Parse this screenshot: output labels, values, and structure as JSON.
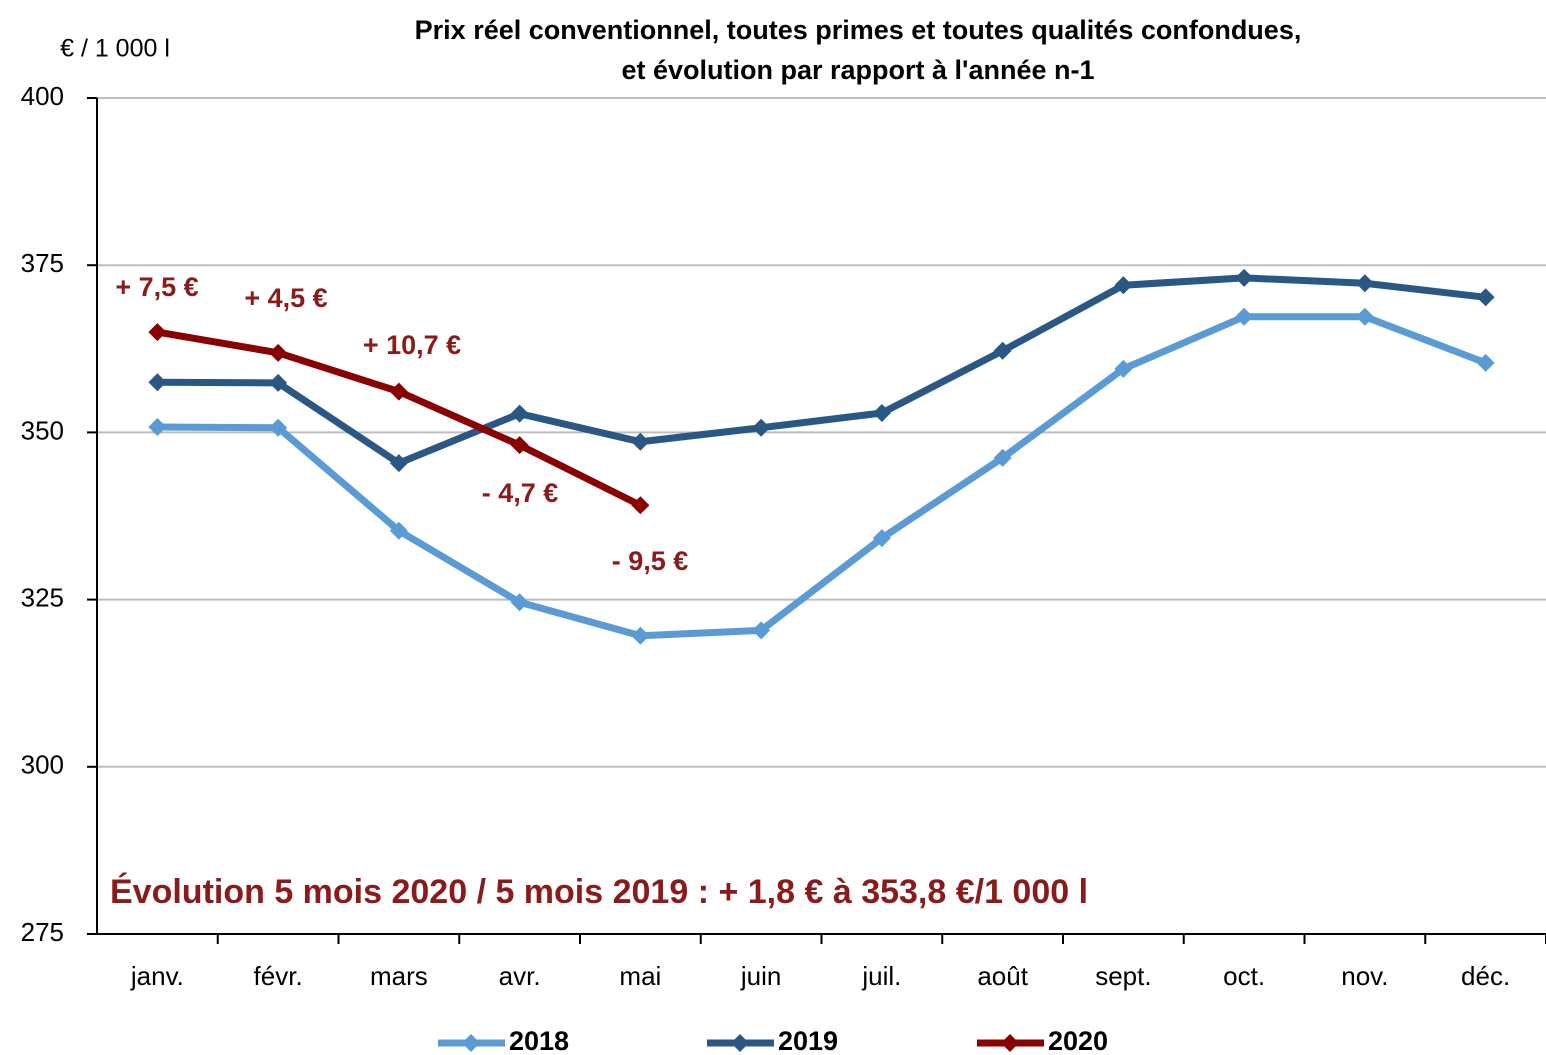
{
  "chart_data": {
    "type": "line",
    "title": [
      "Prix réel conventionnel, toutes primes et toutes qualités confondues,",
      "et évolution par rapport à l'année n-1"
    ],
    "y_axis_label": "€ / 1 000 l",
    "categories": [
      "janv.",
      "févr.",
      "mars",
      "avr.",
      "mai",
      "juin",
      "juil.",
      "août",
      "sept.",
      "oct.",
      "nov.",
      "déc."
    ],
    "series": [
      {
        "name": "2018",
        "color": "#5b9bd5",
        "values": [
          350.8,
          350.7,
          335.3,
          324.6,
          319.6,
          320.4,
          334.2,
          346.2,
          359.5,
          367.3,
          367.3,
          360.4
        ]
      },
      {
        "name": "2019",
        "color": "#2a5783",
        "values": [
          357.5,
          357.4,
          345.4,
          352.8,
          348.6,
          350.7,
          352.9,
          362.2,
          372.0,
          373.1,
          372.3,
          370.2
        ]
      },
      {
        "name": "2020",
        "color": "#8b0000",
        "values": [
          365.0,
          361.9,
          356.1,
          348.1,
          339.1,
          null,
          null,
          null,
          null,
          null,
          null,
          null
        ]
      }
    ],
    "annotations": [
      "+ 7,5 €",
      "+ 4,5 €",
      "+ 10,7 €",
      "- 4,7 €",
      "- 9,5 €"
    ],
    "note": "Évolution 5 mois 2020 / 5 mois 2019 : + 1,8 € à 353,8 €/1 000 l",
    "ylim": [
      275,
      400
    ],
    "yticks": [
      275,
      300,
      325,
      350,
      375,
      400
    ],
    "grid": true,
    "legend": "bottom"
  }
}
